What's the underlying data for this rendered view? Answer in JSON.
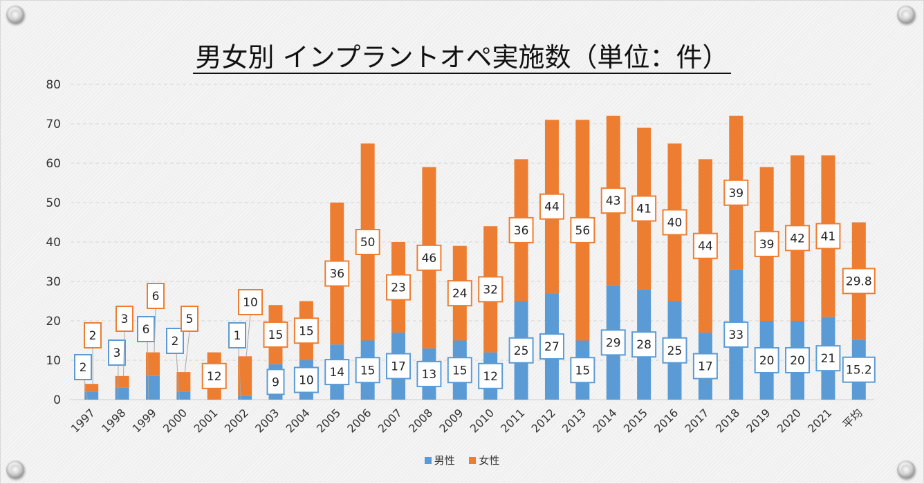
{
  "chart_data": {
    "type": "bar",
    "stacked": true,
    "title": "男女別 インプラントオペ実施数（単位：件）",
    "categories": [
      "1997",
      "1998",
      "1999",
      "2000",
      "2001",
      "2002",
      "2003",
      "2004",
      "2005",
      "2006",
      "2007",
      "2008",
      "2009",
      "2010",
      "2011",
      "2012",
      "2013",
      "2014",
      "2015",
      "2016",
      "2017",
      "2018",
      "2019",
      "2020",
      "2021",
      "平均"
    ],
    "series": [
      {
        "name": "男性",
        "color": "#5b9bd5",
        "values": [
          2,
          3,
          6,
          2,
          0,
          1,
          9,
          10,
          14,
          15,
          17,
          13,
          15,
          12,
          25,
          27,
          15,
          29,
          28,
          25,
          17,
          33,
          20,
          20,
          21,
          15.2
        ]
      },
      {
        "name": "女性",
        "color": "#ed7d31",
        "values": [
          2,
          3,
          6,
          5,
          12,
          10,
          15,
          15,
          36,
          50,
          23,
          46,
          24,
          32,
          36,
          44,
          56,
          43,
          41,
          40,
          44,
          39,
          39,
          42,
          41,
          29.8
        ]
      }
    ],
    "ylim": [
      0,
      80
    ],
    "yticks": [
      0,
      10,
      20,
      30,
      40,
      50,
      60,
      70,
      80
    ],
    "grid": true,
    "legend": "bottom",
    "data_labels": true
  }
}
